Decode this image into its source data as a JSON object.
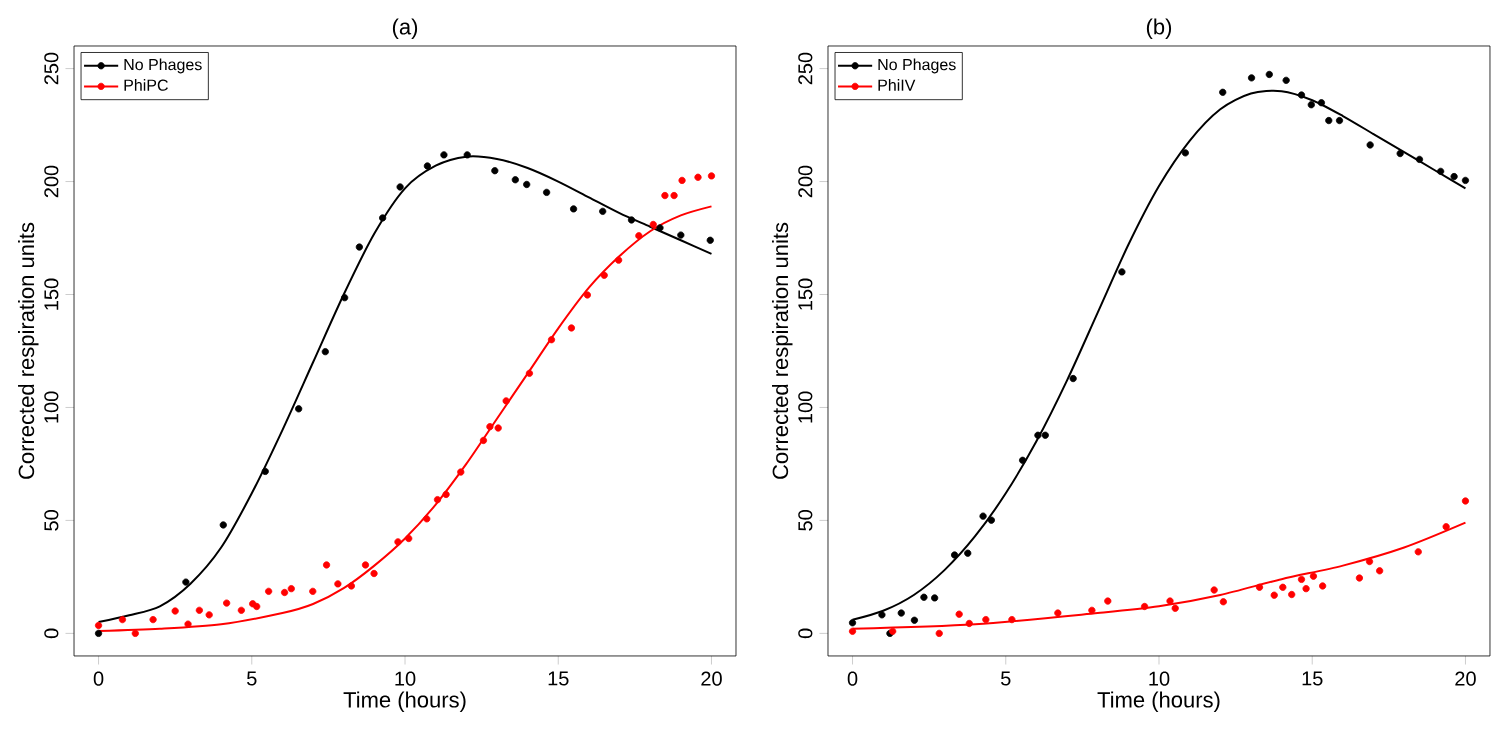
{
  "chart_data": [
    {
      "type": "scatter",
      "title": "(a)",
      "xlabel": "Time (hours)",
      "ylabel": "Corrected respiration units",
      "xlim": [
        -0.8,
        20.8
      ],
      "ylim": [
        -10,
        260
      ],
      "xticks": [
        0,
        5,
        10,
        15,
        20
      ],
      "yticks": [
        0,
        50,
        100,
        150,
        200,
        250
      ],
      "legend": "top left",
      "marker": "circle",
      "series": [
        {
          "name": "No Phages",
          "color": "#000000",
          "x": [
            0,
            2.85,
            4.07,
            5.44,
            6.53,
            7.4,
            8.03,
            8.51,
            9.27,
            9.84,
            10.73,
            11.27,
            12.03,
            12.93,
            13.6,
            13.97,
            14.62,
            15.5,
            16.45,
            17.39,
            18.32,
            19.0,
            19.96
          ],
          "values": [
            0,
            22.7,
            48,
            71.7,
            99.4,
            124.7,
            148.6,
            171,
            183.9,
            197.6,
            206.9,
            211.8,
            211.8,
            204.8,
            200.8,
            198.7,
            195.2,
            187.9,
            186.8,
            183,
            179.5,
            176.3,
            174
          ]
        },
        {
          "name": "PhiPC",
          "color": "#ff0000",
          "x": [
            0,
            0.78,
            1.2,
            1.78,
            2.5,
            2.92,
            3.29,
            3.61,
            4.18,
            4.66,
            5.03,
            5.16,
            5.55,
            6.07,
            6.29,
            6.99,
            7.44,
            7.81,
            8.25,
            8.71,
            8.99,
            9.77,
            10.12,
            10.71,
            11.06,
            11.34,
            11.82,
            12.56,
            12.77,
            13.04,
            13.3,
            14.06,
            14.78,
            15.43,
            15.95,
            16.5,
            16.97,
            17.63,
            18.1,
            18.48,
            18.78,
            19.04,
            19.56,
            20
          ],
          "values": [
            3.5,
            6.1,
            0,
            6.1,
            9.9,
            4.1,
            10.2,
            8.2,
            13.4,
            10.2,
            13.1,
            11.9,
            18.6,
            18.1,
            19.8,
            18.6,
            30.3,
            21.9,
            21,
            30.3,
            26.5,
            40.5,
            42,
            50.7,
            59.2,
            61.5,
            71.4,
            85.4,
            91.5,
            90.9,
            102.9,
            115.1,
            130,
            135.2,
            149.8,
            158.5,
            165.2,
            176,
            181,
            193.8,
            193.8,
            200.5,
            201.9,
            202.5
          ]
        },
        {
          "type": "line",
          "marker": "none",
          "color": "#000000",
          "x": [
            0,
            1,
            2,
            3,
            4,
            5,
            6,
            7,
            8,
            9,
            10,
            11,
            12,
            13,
            14,
            15,
            16,
            17,
            18,
            19,
            20
          ],
          "values": [
            5,
            8,
            12,
            22,
            38,
            62,
            90,
            120,
            150,
            177,
            197,
            207,
            211,
            210,
            206,
            200,
            193,
            186,
            180,
            174,
            168
          ]
        },
        {
          "type": "line",
          "marker": "none",
          "color": "#ff0000",
          "x": [
            0,
            2,
            4,
            6,
            7,
            8,
            9,
            10,
            11,
            12,
            13,
            14,
            15,
            16,
            17,
            18,
            19,
            20
          ],
          "values": [
            1,
            2,
            4,
            9,
            13,
            20,
            30,
            42,
            57,
            75,
            95,
            115,
            135,
            153,
            167,
            178,
            185,
            189
          ]
        }
      ]
    },
    {
      "type": "scatter",
      "title": "(b)",
      "xlabel": "Time (hours)",
      "ylabel": "Corrected respiration units",
      "xlim": [
        -0.8,
        20.8
      ],
      "ylim": [
        -10,
        260
      ],
      "xticks": [
        0,
        5,
        10,
        15,
        20
      ],
      "yticks": [
        0,
        50,
        100,
        150,
        200,
        250
      ],
      "legend": "top left",
      "marker": "circle",
      "series": [
        {
          "name": "No Phages",
          "color": "#000000",
          "x": [
            0,
            0.96,
            1.22,
            1.59,
            2.02,
            2.33,
            2.68,
            3.33,
            3.76,
            4.26,
            4.53,
            5.55,
            6.05,
            6.29,
            7.2,
            8.79,
            10.86,
            12.08,
            13.02,
            13.6,
            14.15,
            14.65,
            14.97,
            15.3,
            15.54,
            15.89,
            16.89,
            17.87,
            18.5,
            19.19,
            19.63,
            20
          ],
          "values": [
            4.7,
            8.2,
            0,
            9,
            5.8,
            16,
            15.7,
            34.7,
            35.5,
            51.9,
            50.1,
            76.6,
            87.7,
            87.7,
            112.8,
            160,
            212.7,
            239.5,
            245.9,
            247.4,
            244.8,
            238.3,
            234,
            234.9,
            227,
            227,
            216.2,
            212.4,
            209.8,
            204.5,
            202.2,
            200.5
          ]
        },
        {
          "name": "PhiIV",
          "color": "#ff0000",
          "x": [
            0,
            1.31,
            2.83,
            3.48,
            3.81,
            4.35,
            5.2,
            6.7,
            7.81,
            8.33,
            9.53,
            10.36,
            10.53,
            11.8,
            12.1,
            13.28,
            13.76,
            14.04,
            14.33,
            14.65,
            14.8,
            15.04,
            15.34,
            16.54,
            16.87,
            17.2,
            18.46,
            19.37,
            20
          ],
          "values": [
            0.9,
            0.9,
            0,
            8.5,
            4.4,
            6.1,
            6.1,
            9,
            10.2,
            14.3,
            11.9,
            14.3,
            11.1,
            19.2,
            14,
            20.4,
            16.9,
            20.4,
            17.2,
            23.9,
            19.8,
            25.3,
            21,
            24.5,
            31.8,
            27.7,
            36.1,
            47.2,
            58.6
          ]
        },
        {
          "type": "line",
          "marker": "none",
          "color": "#000000",
          "x": [
            0,
            1,
            2,
            3,
            4,
            5,
            6,
            7,
            8,
            9,
            10,
            11,
            12,
            13,
            14,
            15,
            16,
            17,
            18,
            19,
            20
          ],
          "values": [
            6,
            10,
            17,
            28,
            43,
            62,
            85,
            112,
            142,
            172,
            198,
            218,
            232,
            239,
            240,
            236,
            229,
            221,
            213,
            205,
            197
          ]
        },
        {
          "type": "line",
          "marker": "none",
          "color": "#ff0000",
          "x": [
            0,
            4,
            8,
            10,
            12,
            14,
            16,
            18,
            20
          ],
          "values": [
            2,
            4,
            9,
            12,
            17,
            24,
            30,
            38,
            49
          ]
        }
      ]
    }
  ]
}
